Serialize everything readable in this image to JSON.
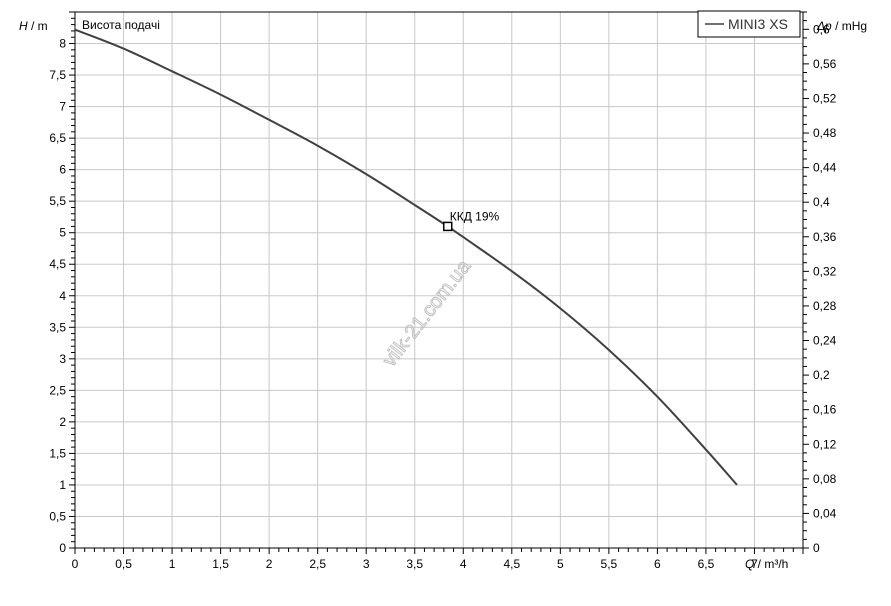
{
  "chart_data": {
    "type": "line",
    "title": "Висота подачі",
    "ylabel_var": "H",
    "ylabel_unit": " / m",
    "y2label_var": "Δp",
    "y2label_unit": " / mHg",
    "xlabel_var": "Q",
    "xlabel_unit": " / m³/h",
    "xlim": [
      0,
      7.5
    ],
    "ylim": [
      0,
      8.5
    ],
    "y2lim": [
      0,
      0.62
    ],
    "x_ticks": [
      "0",
      "0,5",
      "1",
      "1,5",
      "2",
      "2,5",
      "3",
      "3,5",
      "4",
      "4,5",
      "5",
      "5,5",
      "6",
      "6,5",
      "7"
    ],
    "y_ticks": [
      "0",
      "0,5",
      "1",
      "1,5",
      "2",
      "2,5",
      "3",
      "3,5",
      "4",
      "4,5",
      "5",
      "5,5",
      "6",
      "6,5",
      "7",
      "7,5",
      "8"
    ],
    "y2_ticks": [
      "0",
      "0,04",
      "0,08",
      "0,12",
      "0,16",
      "0,2",
      "0,24",
      "0,28",
      "0,32",
      "0,36",
      "0,4",
      "0,44",
      "0,48",
      "0,52",
      "0,56",
      "0,6"
    ],
    "grid": true,
    "legend_position": "top-right",
    "series": [
      {
        "name": "MINI3 XS",
        "color": "#404040",
        "x": [
          0,
          0.5,
          1,
          1.5,
          2,
          2.5,
          3,
          3.5,
          3.84,
          4,
          4.5,
          5,
          5.5,
          6,
          6.5,
          6.82
        ],
        "y": [
          8.22,
          7.92,
          7.56,
          7.19,
          6.79,
          6.38,
          5.93,
          5.44,
          5.1,
          4.93,
          4.39,
          3.8,
          3.14,
          2.4,
          1.56,
          1.0
        ]
      }
    ],
    "annotations": [
      {
        "label": "ККД  19%",
        "x": 3.84,
        "y": 5.1
      }
    ],
    "watermark": "vilk-21.com.ua"
  }
}
